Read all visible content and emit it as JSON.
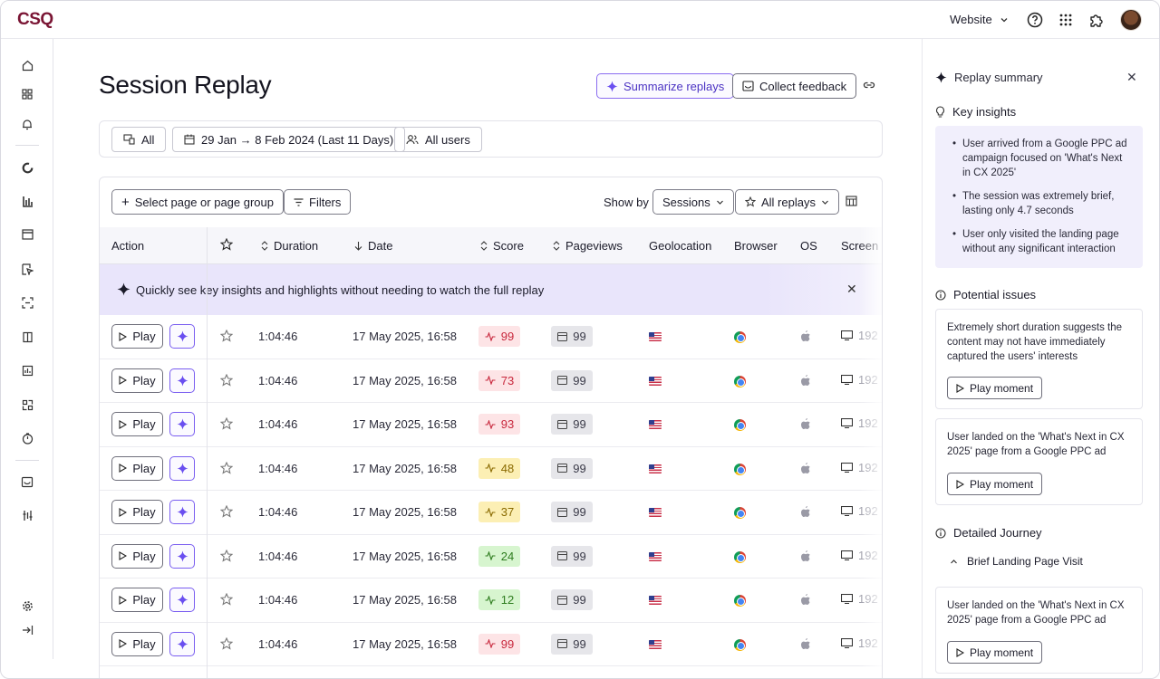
{
  "app": {
    "logo": "CSQ"
  },
  "topbar": {
    "website_label": "Website"
  },
  "page": {
    "title": "Session Replay",
    "summarize_label": "Summarize replays",
    "feedback_label": "Collect feedback"
  },
  "filters": {
    "device": "All",
    "date_range": "29 Jan → 8 Feb 2024 (Last 11 Days)",
    "users": "All users"
  },
  "toolbar": {
    "select_page": "Select page or page group",
    "filters_label": "Filters",
    "show_by_label": "Show by",
    "sessions_select": "Sessions",
    "replays_select": "All replays"
  },
  "table": {
    "columns": [
      "Action",
      "Duration",
      "Date",
      "Score",
      "Pageviews",
      "Geolocation",
      "Browser",
      "OS",
      "Screen s"
    ],
    "banner": "Quickly see key insights and highlights without needing to watch the full replay",
    "play_label": "Play",
    "rows": [
      {
        "duration": "1:04:46",
        "date": "17 May 2025, 16:58",
        "score": "99",
        "score_level": "red",
        "pageviews": "99",
        "screen": "192"
      },
      {
        "duration": "1:04:46",
        "date": "17 May 2025, 16:58",
        "score": "73",
        "score_level": "red",
        "pageviews": "99",
        "screen": "192"
      },
      {
        "duration": "1:04:46",
        "date": "17 May 2025, 16:58",
        "score": "93",
        "score_level": "red",
        "pageviews": "99",
        "screen": "192"
      },
      {
        "duration": "1:04:46",
        "date": "17 May 2025, 16:58",
        "score": "48",
        "score_level": "yellow",
        "pageviews": "99",
        "screen": "192"
      },
      {
        "duration": "1:04:46",
        "date": "17 May 2025, 16:58",
        "score": "37",
        "score_level": "yellow",
        "pageviews": "99",
        "screen": "192"
      },
      {
        "duration": "1:04:46",
        "date": "17 May 2025, 16:58",
        "score": "24",
        "score_level": "green",
        "pageviews": "99",
        "screen": "192"
      },
      {
        "duration": "1:04:46",
        "date": "17 May 2025, 16:58",
        "score": "12",
        "score_level": "green",
        "pageviews": "99",
        "screen": "192"
      },
      {
        "duration": "1:04:46",
        "date": "17 May 2025, 16:58",
        "score": "99",
        "score_level": "red",
        "pageviews": "99",
        "screen": "192"
      }
    ]
  },
  "summary": {
    "title": "Replay summary",
    "key_insights_label": "Key insights",
    "insights": [
      "User arrived from a Google PPC ad campaign focused on 'What's Next in CX 2025'",
      "The session was extremely brief, lasting only 4.7 seconds",
      "User only visited the landing page without any significant interaction"
    ],
    "potential_issues_label": "Potential issues",
    "issues": [
      "Extremely short duration suggests the content may not have immediately captured the users' interests",
      "User landed on the 'What's Next in CX 2025' page from a Google PPC ad"
    ],
    "play_moment_label": "Play moment",
    "journey_label": "Detailed Journey",
    "journey_item": "Brief Landing Page Visit",
    "journey_detail": "User landed on the 'What's Next in CX 2025' page from a Google PPC ad"
  },
  "colors": {
    "score_red_bg": "#fde4e6",
    "score_red_fg": "#c8283d",
    "score_yellow_bg": "#fcefb4",
    "score_yellow_fg": "#8a6a00",
    "score_green_bg": "#d7f5cf",
    "score_green_fg": "#2f7d1f",
    "accent": "#6a4ff0"
  }
}
